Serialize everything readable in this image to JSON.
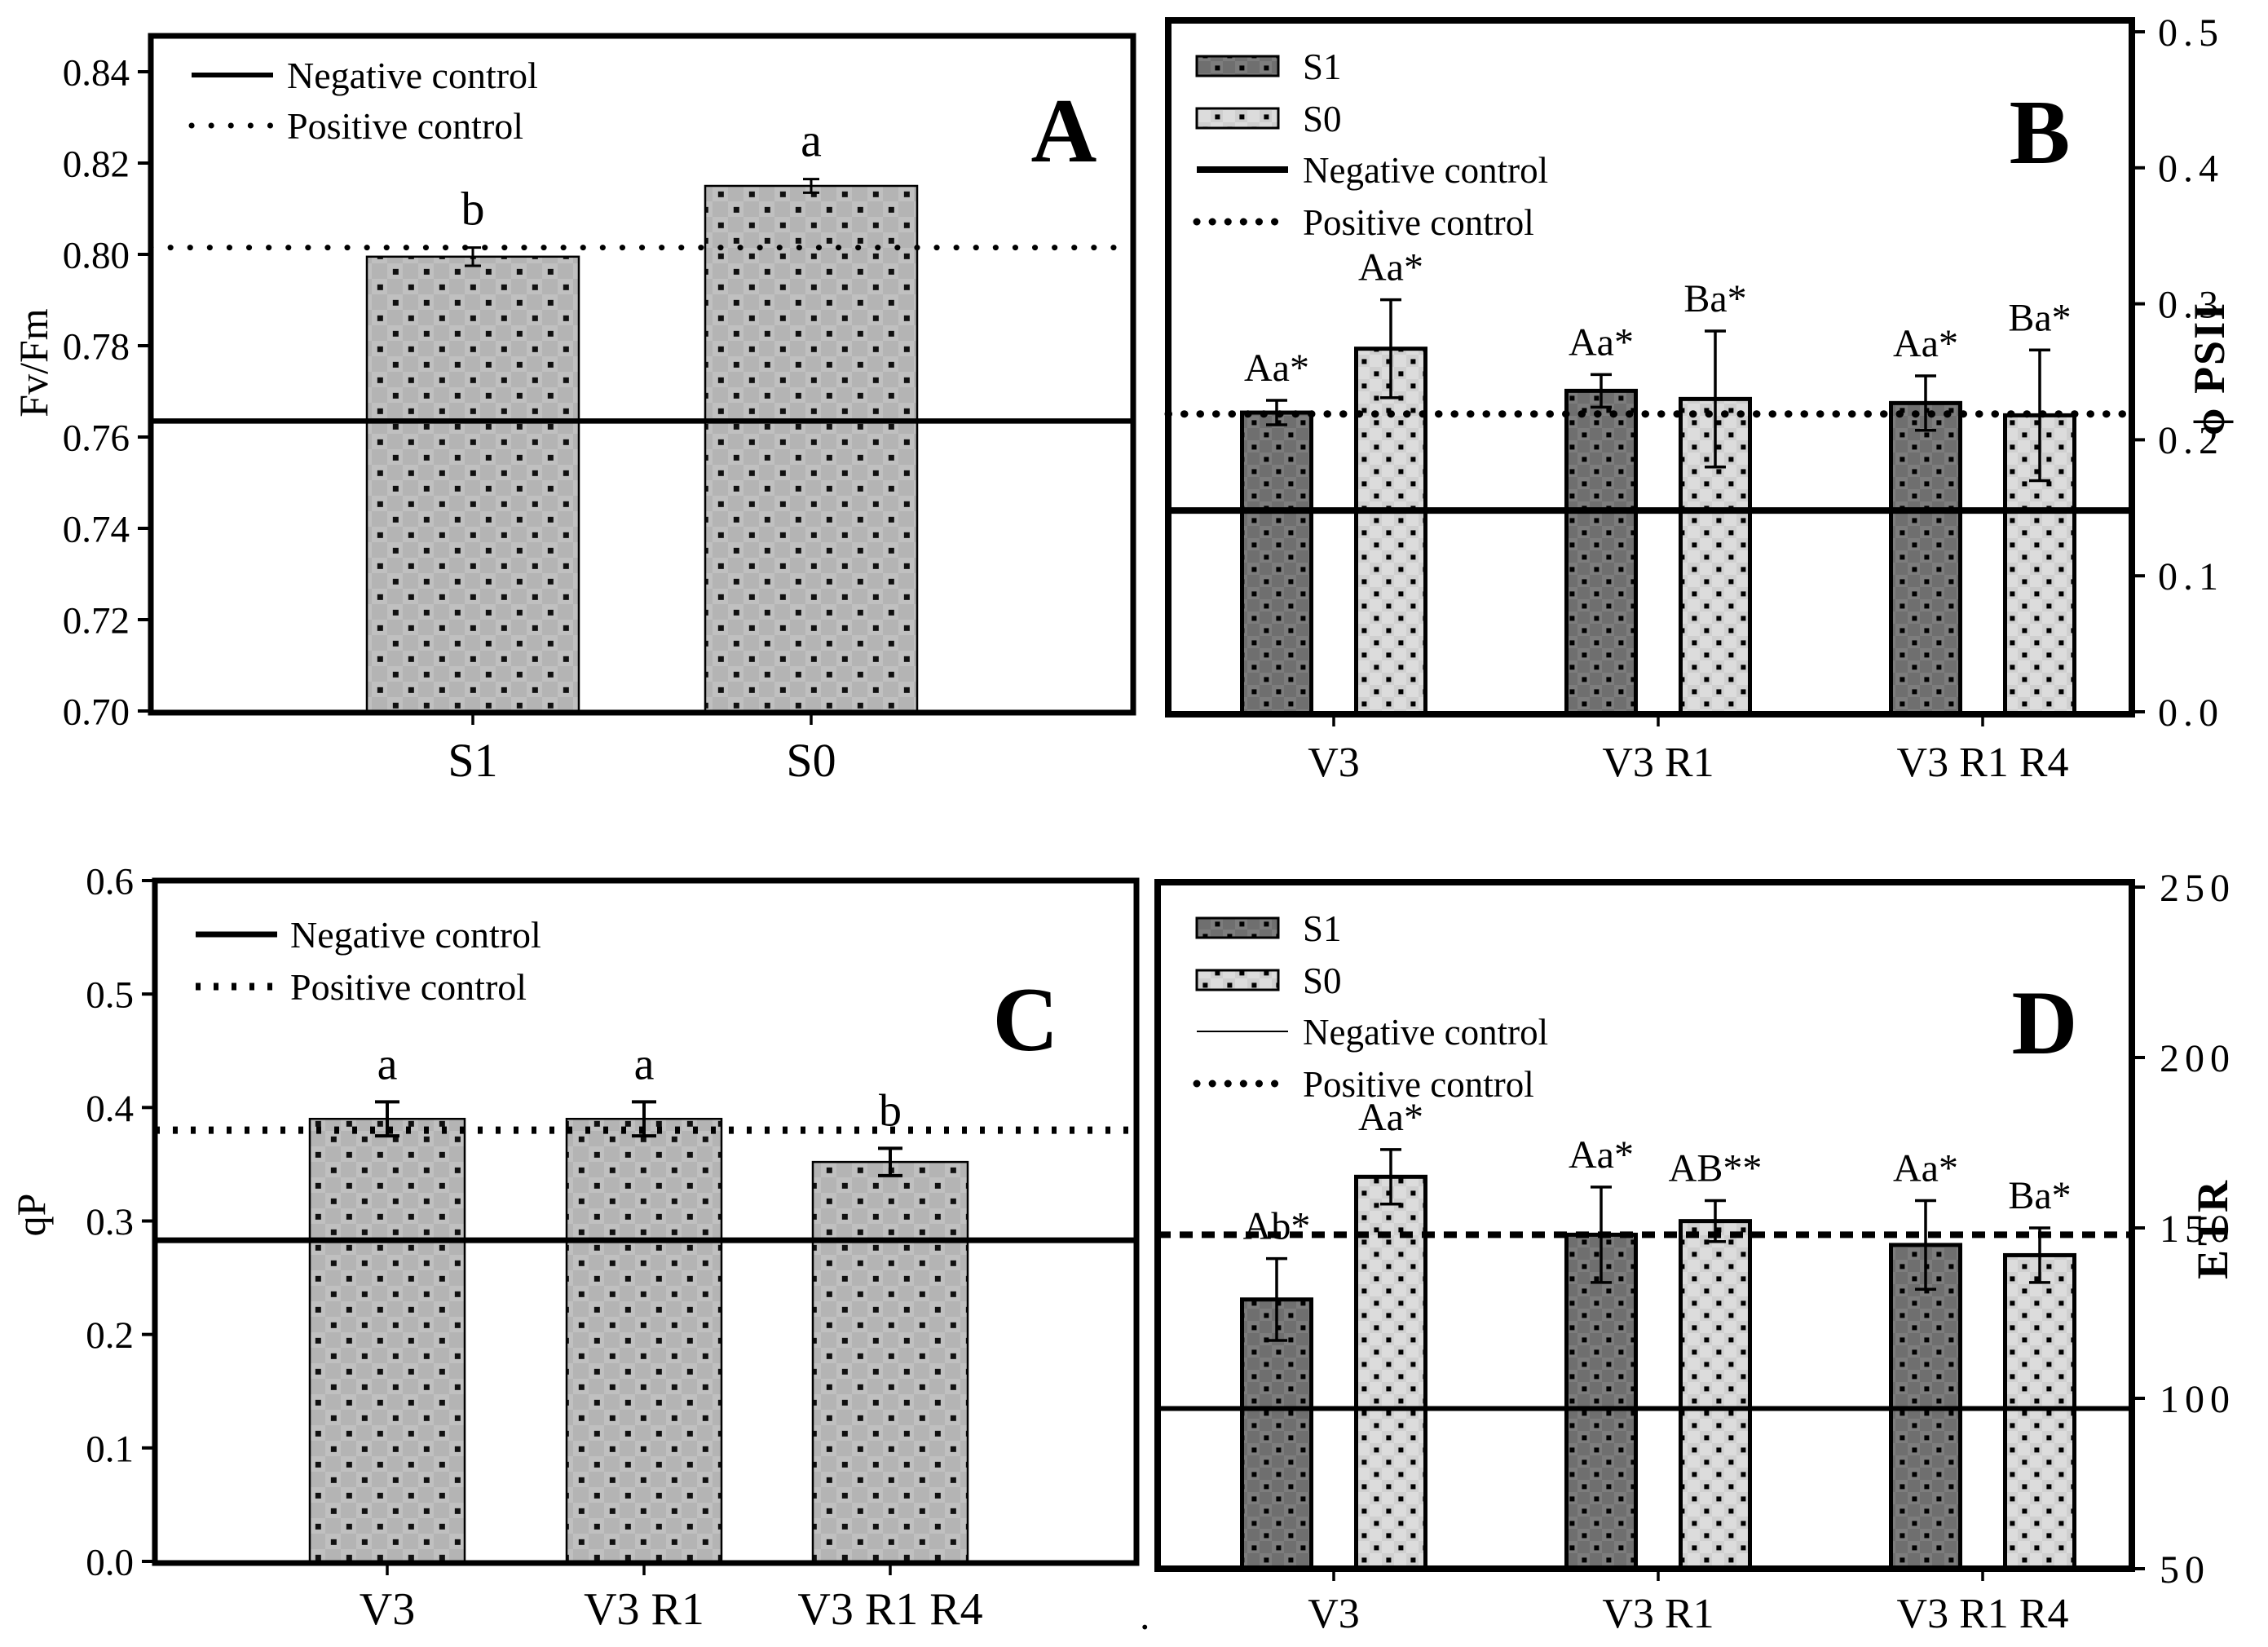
{
  "figure_title": "",
  "misc": {
    "stray_dot": "."
  },
  "chart_data": [
    {
      "panel": "A",
      "type": "bar",
      "ylabel": "Fv/Fm",
      "axis_side": "left",
      "ylim": [
        0.7,
        0.84
      ],
      "yticks": [
        "0.70",
        "0.72",
        "0.74",
        "0.76",
        "0.78",
        "0.80",
        "0.82",
        "0.84"
      ],
      "categories": [
        "S1",
        "S0"
      ],
      "values": [
        0.7995,
        0.815
      ],
      "errors": [
        0.002,
        0.0015
      ],
      "sig_labels": [
        "b",
        "a"
      ],
      "negative_control": 0.7635,
      "positive_control": 0.8015,
      "legend": [
        "Negative control",
        "Positive control"
      ],
      "panel_label": "A",
      "grid": false
    },
    {
      "panel": "B",
      "type": "grouped-bar",
      "ylabel": "ϕ PSII",
      "axis_side": "right",
      "ylim": [
        0.0,
        0.5
      ],
      "yticks": [
        "0.0",
        "0.1",
        "0.2",
        "0.3",
        "0.4",
        "0.5"
      ],
      "categories": [
        "V3",
        "V3 R1",
        "V3 R1 R4"
      ],
      "series": [
        {
          "name": "S1",
          "values": [
            0.22,
            0.236,
            0.227
          ],
          "errors": [
            0.009,
            0.012,
            0.02
          ],
          "sig_labels": [
            "Aa*",
            "Aa*",
            "Aa*"
          ]
        },
        {
          "name": "S0",
          "values": [
            0.267,
            0.23,
            0.218
          ],
          "errors": [
            0.036,
            0.05,
            0.048
          ],
          "sig_labels": [
            "Aa*",
            "Ba*",
            "Ba*"
          ]
        }
      ],
      "negative_control": 0.148,
      "positive_control": 0.219,
      "legend": [
        "S1",
        "S0",
        "Negative control",
        "Positive control"
      ],
      "panel_label": "B",
      "grid": false
    },
    {
      "panel": "C",
      "type": "bar",
      "ylabel": "qP",
      "axis_side": "left",
      "ylim": [
        0.0,
        0.6
      ],
      "yticks": [
        "0.0",
        "0.1",
        "0.2",
        "0.3",
        "0.4",
        "0.5",
        "0.6"
      ],
      "categories": [
        "V3",
        "V3 R1",
        "V3 R1 R4"
      ],
      "values": [
        0.39,
        0.39,
        0.352
      ],
      "errors": [
        0.015,
        0.015,
        0.012
      ],
      "sig_labels": [
        "a",
        "a",
        "b"
      ],
      "negative_control": 0.283,
      "positive_control": 0.38,
      "legend": [
        "Negative control",
        "Positive control"
      ],
      "panel_label": "C",
      "grid": false
    },
    {
      "panel": "D",
      "type": "grouped-bar",
      "ylabel": "ETR",
      "axis_side": "right",
      "ylim": [
        50,
        250
      ],
      "yticks": [
        "50",
        "100",
        "150",
        "200",
        "250"
      ],
      "categories": [
        "V3",
        "V3 R1",
        "V3 R1 R4"
      ],
      "series": [
        {
          "name": "S1",
          "values": [
            129,
            148,
            145
          ],
          "errors": [
            12,
            14,
            13
          ],
          "sig_labels": [
            "Ab*",
            "Aa*",
            "Aa*"
          ]
        },
        {
          "name": "S0",
          "values": [
            165,
            152,
            142
          ],
          "errors": [
            8,
            6,
            8
          ],
          "sig_labels": [
            "Aa*",
            "AB**",
            "Ba*"
          ]
        }
      ],
      "negative_control": 97,
      "positive_control": 148,
      "legend": [
        "S1",
        "S0",
        "Negative control",
        "Positive control"
      ],
      "panel_label": "D",
      "grid": false
    }
  ]
}
